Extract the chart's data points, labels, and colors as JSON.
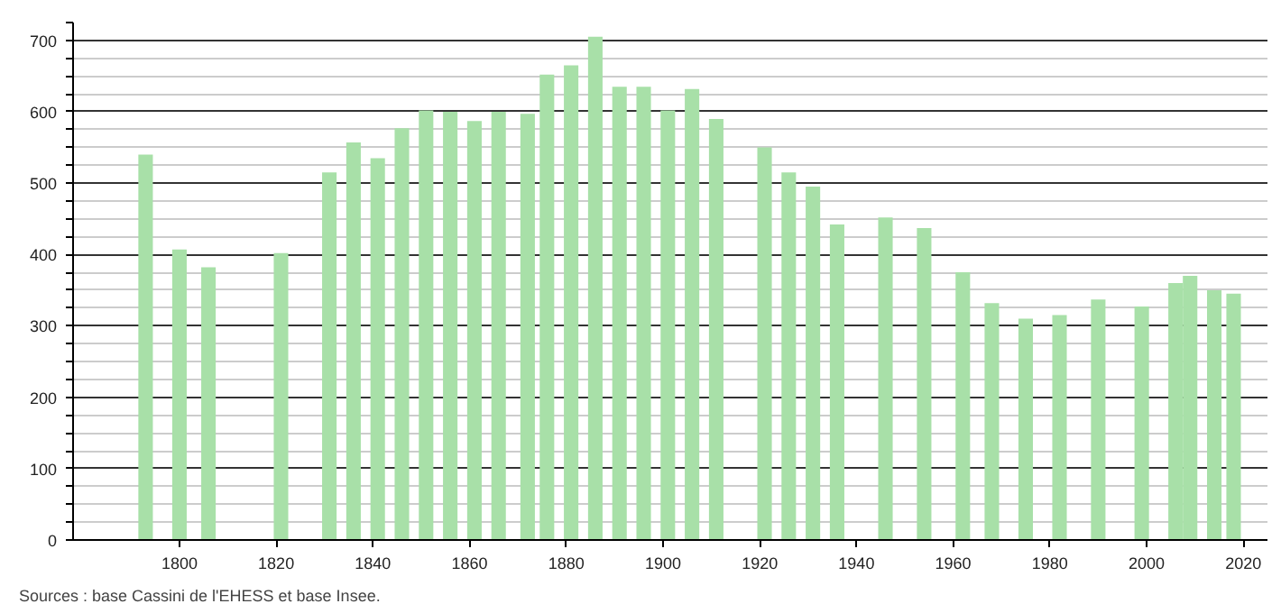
{
  "chart_data": {
    "type": "bar",
    "x": [
      1793,
      1800,
      1806,
      1821,
      1831,
      1836,
      1841,
      1846,
      1851,
      1856,
      1861,
      1866,
      1872,
      1876,
      1881,
      1886,
      1891,
      1896,
      1901,
      1906,
      1911,
      1921,
      1926,
      1931,
      1936,
      1946,
      1954,
      1962,
      1968,
      1975,
      1982,
      1990,
      1999,
      2006,
      2009,
      2014,
      2018
    ],
    "values": [
      540,
      407,
      382,
      402,
      515,
      557,
      535,
      577,
      602,
      600,
      587,
      600,
      597,
      652,
      665,
      705,
      635,
      635,
      602,
      632,
      590,
      550,
      515,
      495,
      442,
      452,
      437,
      375,
      332,
      310,
      315,
      337,
      327,
      360,
      370,
      350,
      345
    ],
    "color": "#a8e0a8",
    "xlim": [
      1778,
      2025
    ],
    "xticks": [
      1800,
      1820,
      1840,
      1860,
      1880,
      1900,
      1920,
      1940,
      1960,
      1980,
      2000,
      2020
    ],
    "ylim": [
      0,
      725
    ],
    "yticks": [
      0,
      {
        "value": 25,
        "label": null
      },
      {
        "value": 50,
        "label": null
      },
      {
        "value": 75,
        "label": null
      },
      100,
      {
        "value": 125,
        "label": null
      },
      {
        "value": 150,
        "label": null
      },
      {
        "value": 175,
        "label": null
      },
      200,
      {
        "value": 225,
        "label": null
      },
      {
        "value": 250,
        "label": null
      },
      {
        "value": 275,
        "label": null
      },
      300,
      {
        "value": 325,
        "label": null
      },
      {
        "value": 350,
        "label": null
      },
      {
        "value": 375,
        "label": null
      },
      400,
      {
        "value": 425,
        "label": null
      },
      {
        "value": 450,
        "label": null
      },
      {
        "value": 475,
        "label": null
      },
      500,
      {
        "value": 525,
        "label": null
      },
      {
        "value": 550,
        "label": null
      },
      {
        "value": 575,
        "label": null
      },
      600,
      {
        "value": 625,
        "label": null
      },
      {
        "value": 650,
        "label": null
      },
      {
        "value": 675,
        "label": null
      },
      700,
      {
        "value": 725,
        "label": null
      }
    ],
    "grid": "y",
    "annotations": [
      "Sources : base Cassini de l'EHESS et base Insee."
    ]
  }
}
